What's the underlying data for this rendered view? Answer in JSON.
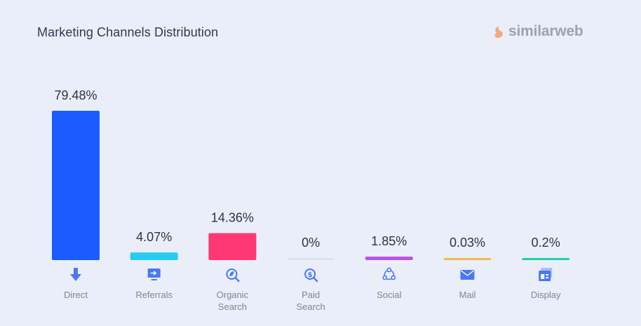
{
  "header": {
    "title": "Marketing Channels Distribution",
    "brand": "similarweb"
  },
  "colors": {
    "background": "#e9eef8",
    "icon_blue": "#4a78f0"
  },
  "chart_data": {
    "type": "bar",
    "title": "Marketing Channels Distribution",
    "categories": [
      "Direct",
      "Referrals",
      "Organic Search",
      "Paid Search",
      "Social",
      "Mail",
      "Display"
    ],
    "category_lines": [
      [
        "Direct"
      ],
      [
        "Referrals"
      ],
      [
        "Organic",
        "Search"
      ],
      [
        "Paid",
        "Search"
      ],
      [
        "Social"
      ],
      [
        "Mail"
      ],
      [
        "Display"
      ]
    ],
    "values": [
      79.48,
      4.07,
      14.36,
      0,
      1.85,
      0.03,
      0.2
    ],
    "value_labels": [
      "79.48%",
      "4.07%",
      "14.36%",
      "0%",
      "1.85%",
      "0.03%",
      "0.2%"
    ],
    "colors": [
      "#1a5cff",
      "#27ccf2",
      "#ff3873",
      "#dde3ee",
      "#b954e8",
      "#f5b94a",
      "#1fcfa3"
    ],
    "icons": [
      "arrow-down-icon",
      "monitor-arrow-icon",
      "leaf-magnifier-icon",
      "dollar-magnifier-icon",
      "share-network-icon",
      "envelope-icon",
      "browser-window-icon"
    ],
    "ylim": [
      0,
      79.48
    ],
    "grid": false,
    "legend": "none"
  }
}
